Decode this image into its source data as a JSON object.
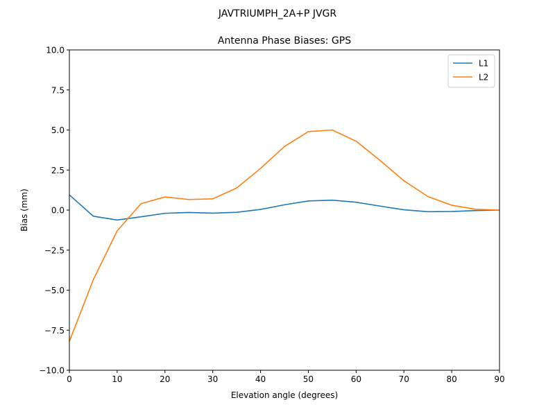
{
  "chart_data": {
    "type": "line",
    "suptitle": "JAVTRIUMPH_2A+P JVGR",
    "title": "Antenna Phase Biases: GPS",
    "xlabel": "Elevation angle (degrees)",
    "ylabel": "Bias (mm)",
    "xlim": [
      0,
      90
    ],
    "ylim": [
      -10,
      10
    ],
    "xticks": [
      0,
      10,
      20,
      30,
      40,
      50,
      60,
      70,
      80,
      90
    ],
    "yticks": [
      -10.0,
      -7.5,
      -5.0,
      -2.5,
      0.0,
      2.5,
      5.0,
      7.5,
      10.0
    ],
    "xtick_labels": [
      "0",
      "10",
      "20",
      "30",
      "40",
      "50",
      "60",
      "70",
      "80",
      "90"
    ],
    "ytick_labels": [
      "−10.0",
      "−7.5",
      "−5.0",
      "−2.5",
      "0.0",
      "2.5",
      "5.0",
      "7.5",
      "10.0"
    ],
    "grid": false,
    "legend_position": "top-right",
    "x": [
      0,
      5,
      10,
      15,
      20,
      25,
      30,
      35,
      40,
      45,
      50,
      55,
      60,
      65,
      70,
      75,
      80,
      85,
      90
    ],
    "series": [
      {
        "name": "L1",
        "color": "#1f77b4",
        "values": [
          0.95,
          -0.38,
          -0.62,
          -0.42,
          -0.2,
          -0.15,
          -0.19,
          -0.14,
          0.04,
          0.33,
          0.57,
          0.62,
          0.49,
          0.25,
          0.02,
          -0.1,
          -0.09,
          -0.03,
          0.0
        ]
      },
      {
        "name": "L2",
        "color": "#ff7f0e",
        "values": [
          -8.2,
          -4.35,
          -1.3,
          0.4,
          0.82,
          0.66,
          0.7,
          1.38,
          2.6,
          3.97,
          4.9,
          5.0,
          4.3,
          3.1,
          1.83,
          0.85,
          0.3,
          0.05,
          0.0
        ]
      }
    ]
  }
}
